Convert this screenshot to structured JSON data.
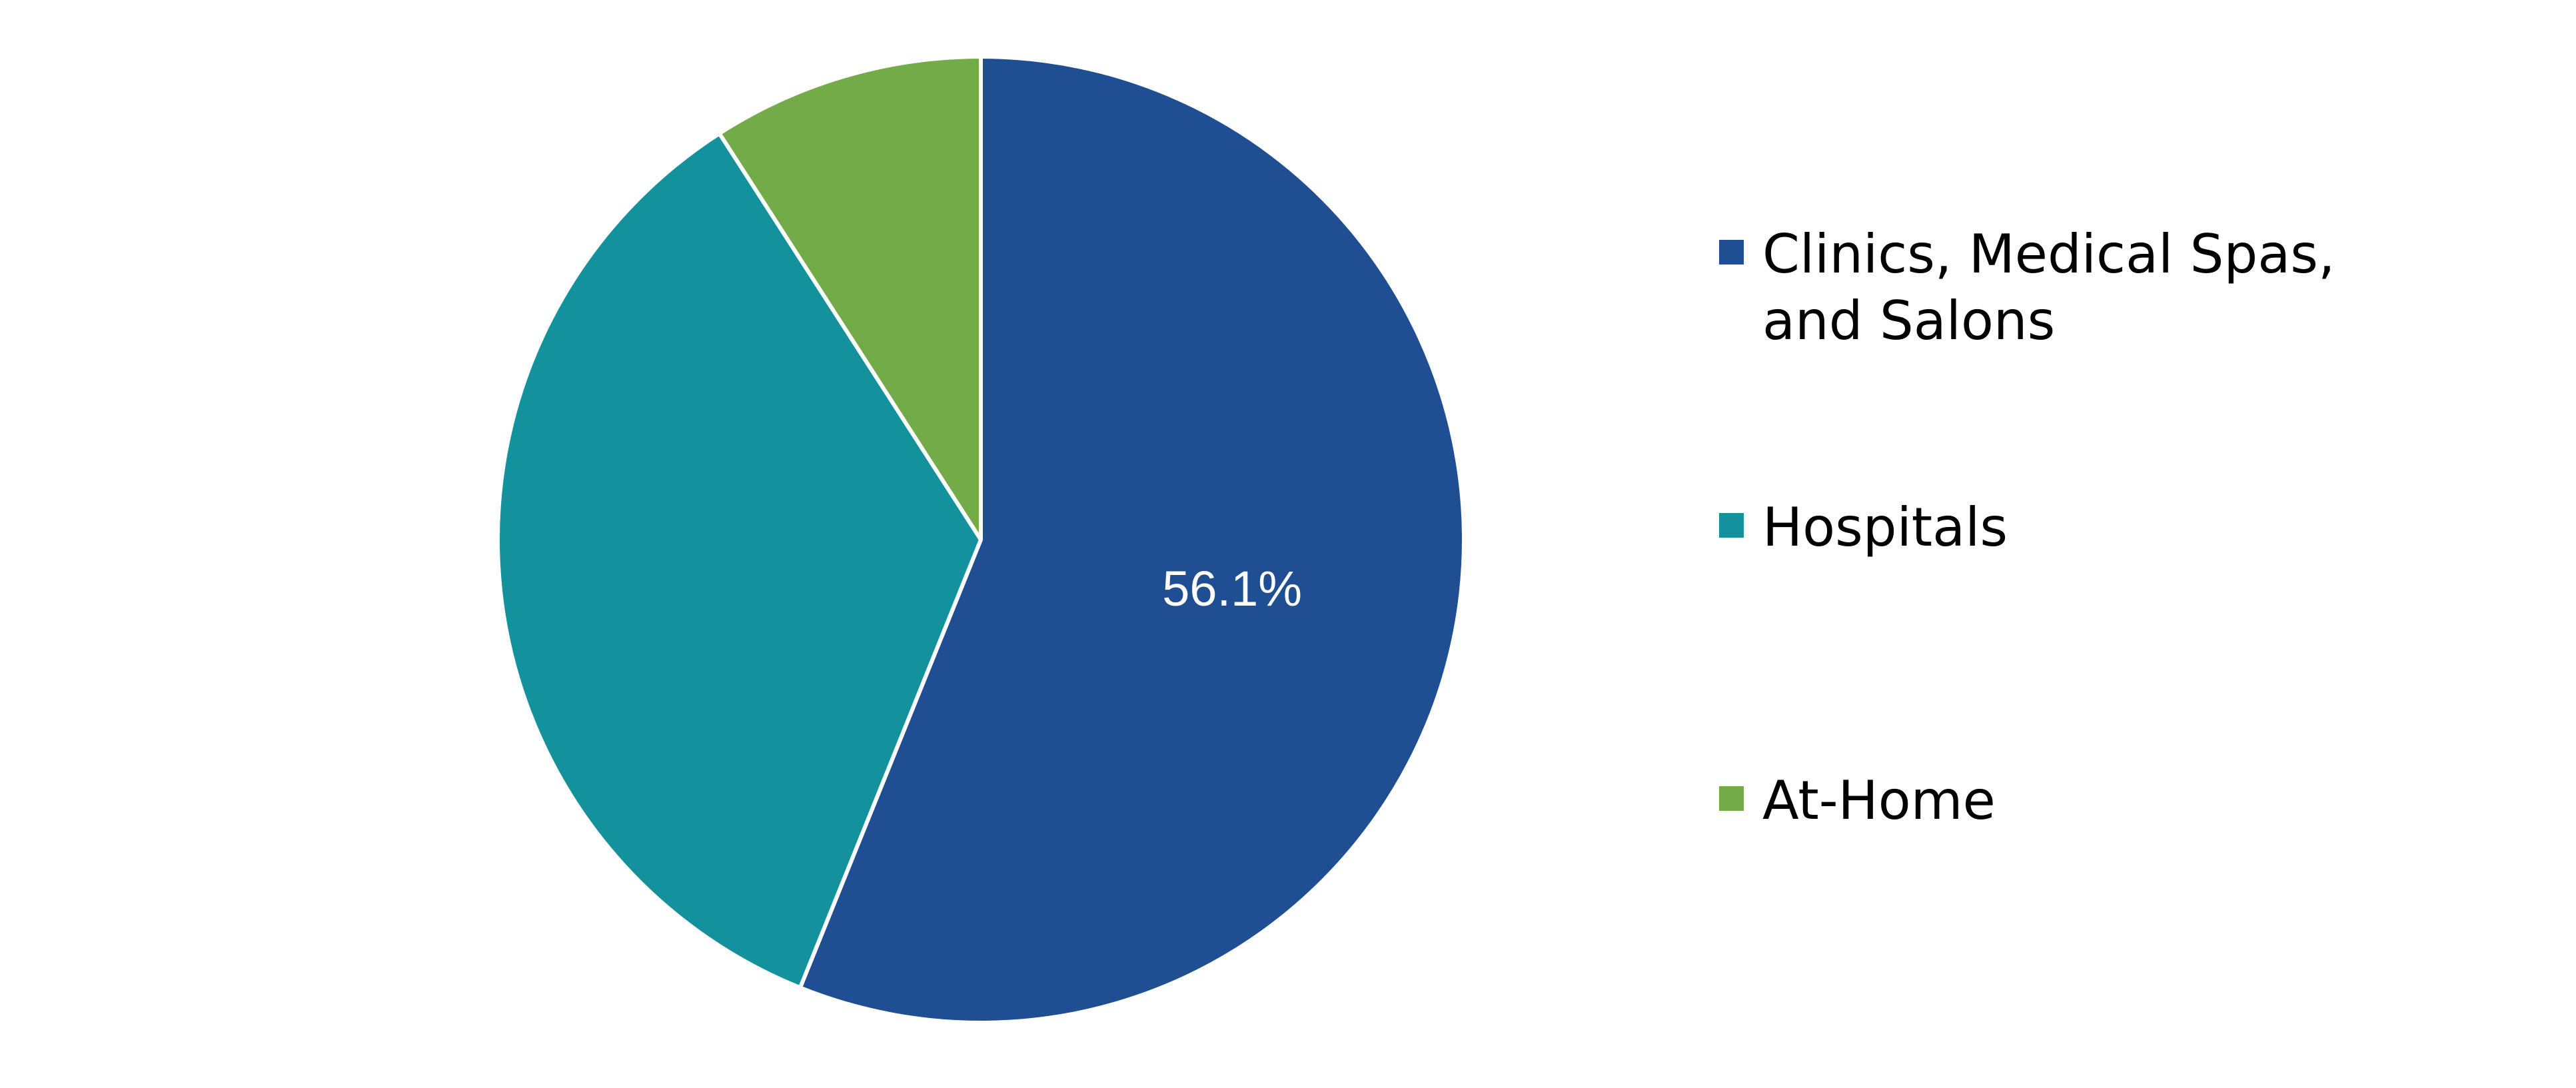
{
  "chart_data": {
    "type": "pie",
    "title": "",
    "legend_position": "right",
    "series": [
      {
        "label": "Clinics, Medical Spas, and Salons",
        "value": 56.1,
        "color": "#1f4e93",
        "data_label": "56.1%"
      },
      {
        "label": "Hospitals",
        "value": 34.8,
        "color": "#13929e",
        "data_label": ""
      },
      {
        "label": "At-Home",
        "value": 9.1,
        "color": "#72ab48",
        "data_label": ""
      }
    ]
  }
}
